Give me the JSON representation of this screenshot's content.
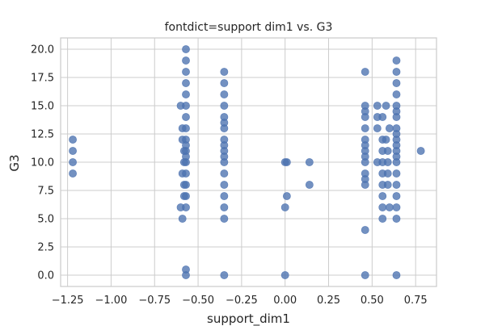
{
  "chart_data": {
    "type": "scatter",
    "title": "fontdict=support dim1 vs. G3",
    "xlabel": "support_dim1",
    "ylabel": "G3",
    "xlim": [
      -1.29,
      0.87
    ],
    "ylim": [
      -1.0,
      21.0
    ],
    "xticks": [
      -1.25,
      -1.0,
      -0.75,
      -0.5,
      -0.25,
      0.0,
      0.25,
      0.5,
      0.75
    ],
    "xtick_labels": [
      "−1.25",
      "−1.00",
      "−0.75",
      "−0.50",
      "−0.25",
      "0.00",
      "0.25",
      "0.50",
      "0.75"
    ],
    "yticks": [
      0,
      2.5,
      5,
      7.5,
      10,
      12.5,
      15,
      17.5,
      20
    ],
    "ytick_labels": [
      "0.0",
      "2.5",
      "5.0",
      "7.5",
      "10.0",
      "12.5",
      "15.0",
      "17.5",
      "20.0"
    ],
    "grid": true,
    "color": "#4c72b0",
    "series": [
      {
        "x": [
          -1.22,
          -1.22,
          -1.22,
          -1.22,
          -0.6,
          -0.59,
          -0.59,
          -0.58,
          -0.58,
          -0.59,
          -0.58,
          -0.58,
          -0.6,
          -0.59,
          -0.57,
          -0.57,
          -0.57,
          -0.57,
          -0.57,
          -0.57,
          -0.57,
          -0.57,
          -0.57,
          -0.57,
          -0.57,
          -0.57,
          -0.57,
          -0.57,
          -0.57,
          -0.57,
          -0.57,
          -0.57,
          -0.57,
          -0.35,
          -0.35,
          -0.35,
          -0.35,
          -0.35,
          -0.35,
          -0.35,
          -0.35,
          -0.35,
          -0.35,
          -0.35,
          -0.35,
          -0.35,
          -0.35,
          -0.35,
          -0.35,
          -0.35,
          -0.35,
          0.01,
          0.01,
          0.0,
          0.0,
          0.0,
          0.14,
          0.14,
          0.46,
          0.46,
          0.46,
          0.46,
          0.46,
          0.46,
          0.46,
          0.46,
          0.46,
          0.46,
          0.46,
          0.46,
          0.46,
          0.46,
          0.46,
          0.53,
          0.53,
          0.53,
          0.53,
          0.56,
          0.56,
          0.56,
          0.56,
          0.56,
          0.56,
          0.56,
          0.56,
          0.56,
          0.58,
          0.58,
          0.59,
          0.59,
          0.59,
          0.59,
          0.6,
          0.6,
          0.64,
          0.64,
          0.64,
          0.64,
          0.64,
          0.64,
          0.64,
          0.64,
          0.64,
          0.64,
          0.64,
          0.64,
          0.64,
          0.64,
          0.64,
          0.64,
          0.64,
          0.64,
          0.64,
          0.64,
          0.78
        ],
        "y": [
          12,
          11,
          10,
          9,
          15,
          13,
          12,
          11,
          10,
          9,
          8,
          7,
          6,
          5,
          20,
          19,
          18,
          17,
          16,
          15,
          14,
          13,
          12,
          11,
          10,
          9,
          8,
          7,
          6,
          0,
          0.5,
          10.5,
          11.5,
          18,
          17,
          16,
          15,
          14,
          13,
          12,
          11,
          10,
          9,
          8,
          7,
          6,
          5,
          0,
          10.5,
          11.5,
          13.5,
          10,
          7,
          6,
          0,
          10,
          10,
          8,
          18,
          15,
          14,
          13,
          12,
          11,
          10,
          9,
          8,
          4,
          0,
          14.5,
          10.5,
          11.5,
          8.5,
          15,
          14,
          13,
          10,
          14,
          12,
          11,
          10,
          9,
          8,
          7,
          6,
          5,
          12,
          15,
          11,
          10,
          9,
          8,
          6,
          13,
          19,
          18,
          17,
          16,
          15,
          14,
          13,
          12,
          11,
          10,
          9,
          8,
          7,
          6,
          5,
          0,
          11.5,
          10.5,
          12.5,
          14.5,
          11
        ]
      }
    ]
  }
}
